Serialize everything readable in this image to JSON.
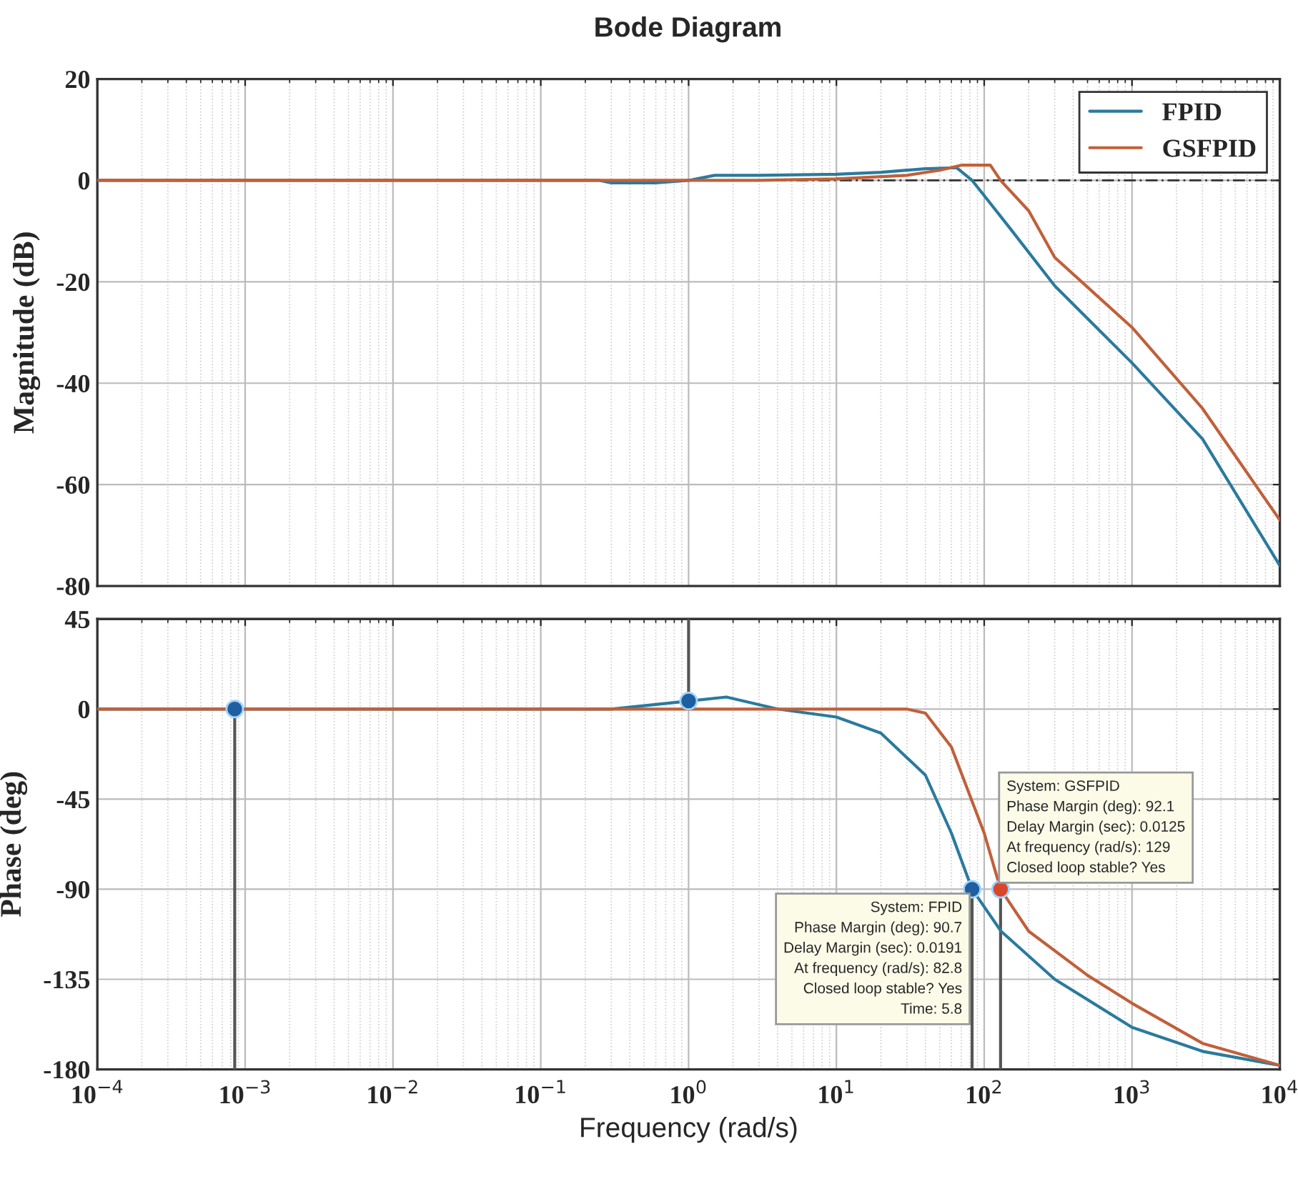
{
  "chart_data": [
    {
      "type": "line",
      "title": "Bode Diagram",
      "ylabel": "Magnitude (dB)",
      "log": "x",
      "grid": true,
      "legend": "top right",
      "tick_labels": "y",
      "xlim": [
        0.0001,
        10000
      ],
      "xticks": [
        {
          "value": 0.0001,
          "label": null
        },
        {
          "value": 0.001,
          "label": null
        },
        {
          "value": 0.01,
          "label": null
        },
        {
          "value": 0.1,
          "label": null
        },
        {
          "value": 1,
          "label": null
        },
        {
          "value": 10,
          "label": null
        },
        {
          "value": 100,
          "label": null
        },
        {
          "value": 1000,
          "label": null
        },
        {
          "value": 10000,
          "label": null
        }
      ],
      "ylim": [
        -80,
        20
      ],
      "yticks": [
        -80,
        -60,
        -40,
        -20,
        0,
        20
      ],
      "ref_lines": [
        {
          "axis": "y",
          "value": 0,
          "color": "#333333",
          "line_style": "dashed"
        }
      ],
      "series": [
        {
          "name": "FPID",
          "color": "#2a7a9e",
          "x": [
            0.0001,
            0.25,
            0.3,
            0.6,
            1,
            1.5,
            3,
            10,
            20,
            40,
            65,
            82.8,
            100,
            150,
            300,
            1000,
            3000,
            10000
          ],
          "values": [
            0,
            0,
            -0.5,
            -0.5,
            0,
            1,
            1,
            1.2,
            1.6,
            2.3,
            2.5,
            0,
            -3,
            -9.5,
            -20.8,
            -36,
            -51,
            -76
          ]
        },
        {
          "name": "GSFPID",
          "color": "#c0603a",
          "x": [
            0.0001,
            3,
            10,
            30,
            50,
            70,
            110,
            129,
            200,
            300,
            1000,
            3000,
            10000
          ],
          "values": [
            0,
            0,
            0.3,
            1,
            2,
            3,
            3,
            0,
            -6,
            -15.2,
            -29,
            -45,
            -67
          ]
        }
      ]
    },
    {
      "type": "line",
      "xlabel": "Frequency (rad/s)",
      "ylabel": "Phase (deg)",
      "log": "x",
      "grid": true,
      "xlim": [
        0.0001,
        10000
      ],
      "xticks": [
        {
          "value": 0.0001,
          "label": "10$^{−4}$"
        },
        {
          "value": 0.001,
          "label": "10$^{−3}$"
        },
        {
          "value": 0.01,
          "label": "10$^{−2}$"
        },
        {
          "value": 0.1,
          "label": "10$^{−1}$"
        },
        {
          "value": 1,
          "label": "10$^{0}$"
        },
        {
          "value": 10,
          "label": "10$^{1}$"
        },
        {
          "value": 100,
          "label": "10$^{2}$"
        },
        {
          "value": 1000,
          "label": "10$^{3}$"
        },
        {
          "value": 10000,
          "label": "10$^{4}$"
        }
      ],
      "ylim": [
        -180,
        45
      ],
      "yticks": [
        -180,
        -135,
        -90,
        -45,
        0,
        45
      ],
      "annotations": [
        {
          "text": "System: FPID\nPhase Margin (deg): 90.7\nDelay Margin (sec): 0.0191\nAt frequency (rad/s): 82.8\nClosed loop stable? Yes\nTime: 5.8",
          "x": 82.8,
          "y": -90
        },
        {
          "text": "System: GSFPID\nPhase Margin (deg): 92.1\nDelay Margin (sec): 0.0125\nAt frequency (rad/s): 129\nClosed loop stable? Yes",
          "x": 129,
          "y": -90
        }
      ],
      "series": [
        {
          "color": "#555555",
          "x": [
            0.00085,
            0.00085
          ],
          "values": [
            0,
            -180
          ]
        },
        {
          "color": "#555555",
          "x": [
            1,
            1
          ],
          "values": [
            45,
            4
          ]
        },
        {
          "color": "#555555",
          "x": [
            82.8,
            82.8
          ],
          "values": [
            -90,
            -180
          ]
        },
        {
          "color": "#555555",
          "x": [
            129,
            129
          ],
          "values": [
            -90,
            -180
          ]
        },
        {
          "color": "#2a7a9e",
          "x": [
            0.0001,
            0.3,
            1,
            1.8,
            4,
            10,
            20,
            40,
            60,
            82.8,
            130,
            300,
            1000,
            3000,
            10000
          ],
          "values": [
            0,
            0,
            4,
            6,
            0,
            -4,
            -12,
            -33,
            -62,
            -90,
            -111,
            -135,
            -159,
            -171,
            -178
          ]
        },
        {
          "color": "#c0603a",
          "x": [
            0.0001,
            30,
            40,
            60,
            100,
            129,
            200,
            500,
            1000,
            3000,
            10000
          ],
          "values": [
            0,
            0,
            -2,
            -19,
            -62,
            -90,
            -111,
            -133,
            -147,
            -167,
            -178
          ]
        },
        {
          "type": "scatter",
          "color": "#1f5fa0",
          "x": [
            0.00085,
            1,
            82.8
          ],
          "values": [
            0,
            4,
            -90
          ]
        },
        {
          "type": "scatter",
          "color": "#d9472b",
          "x": [
            129
          ],
          "values": [
            -90
          ]
        }
      ]
    }
  ]
}
